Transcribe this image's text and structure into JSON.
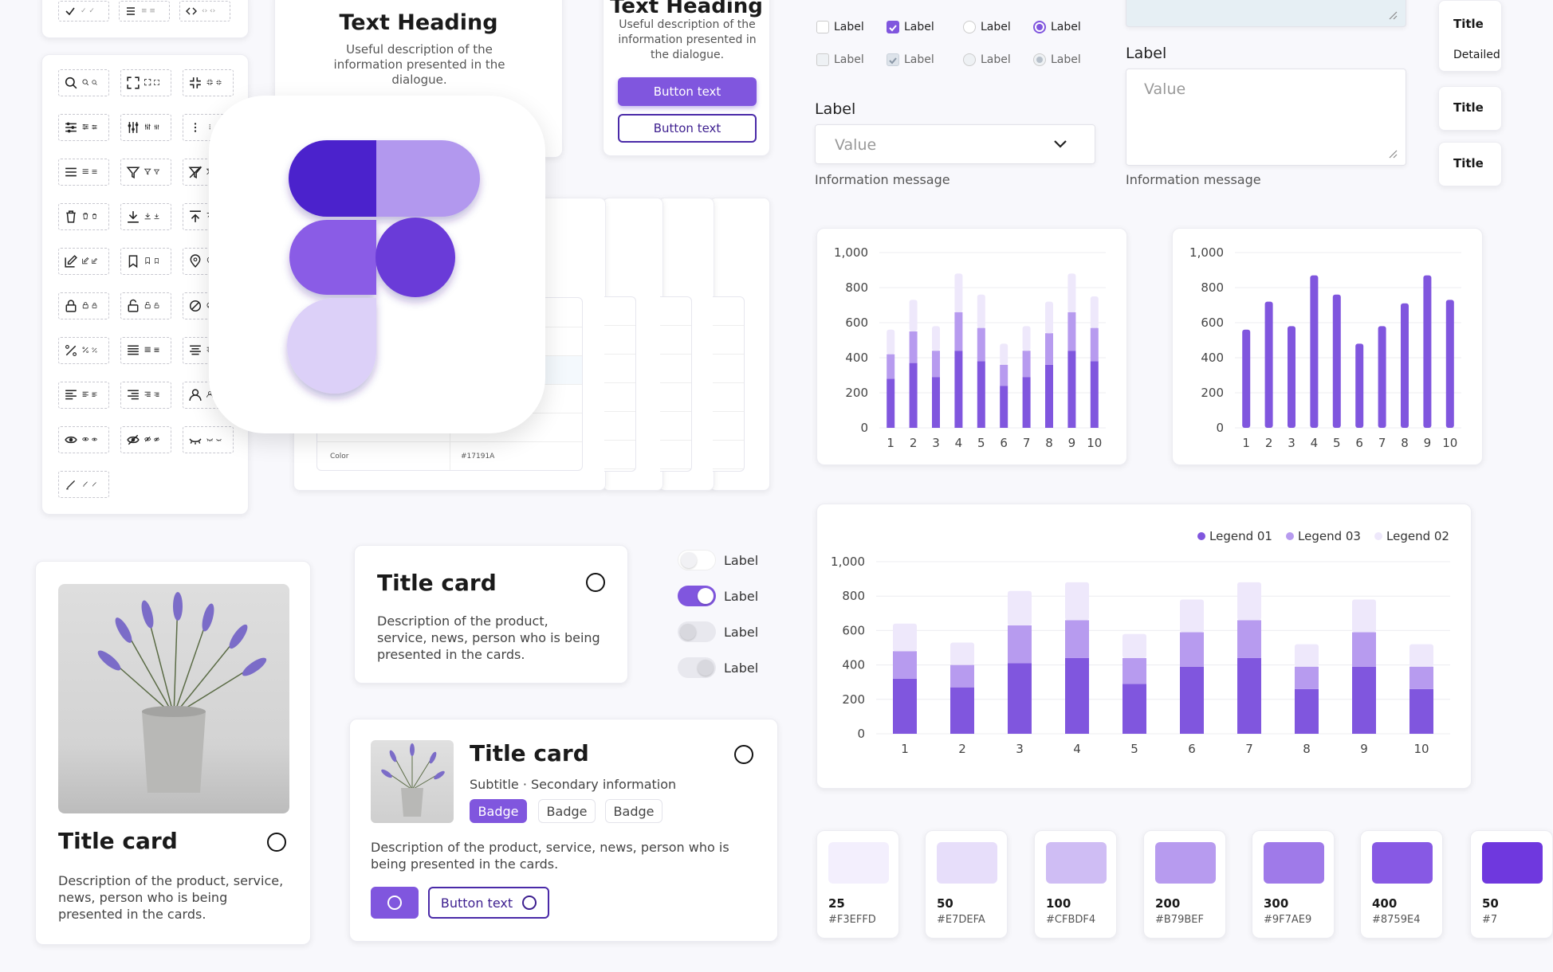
{
  "icon_buttons": [
    {
      "name": "check-icon"
    },
    {
      "name": "list-icon"
    },
    {
      "name": "code-icon"
    },
    {
      "name": "search-icon"
    },
    {
      "name": "fullscreen-icon"
    },
    {
      "name": "collapse-icon"
    },
    {
      "name": "sliders-horizontal-icon"
    },
    {
      "name": "sliders-vertical-icon"
    },
    {
      "name": "more-vertical-icon"
    },
    {
      "name": "menu-icon"
    },
    {
      "name": "filter-icon"
    },
    {
      "name": "filter-off-icon"
    },
    {
      "name": "trash-icon"
    },
    {
      "name": "download-icon"
    },
    {
      "name": "upload-icon"
    },
    {
      "name": "edit-icon"
    },
    {
      "name": "bookmark-icon"
    },
    {
      "name": "location-pin-icon"
    },
    {
      "name": "lock-icon"
    },
    {
      "name": "unlock-icon"
    },
    {
      "name": "block-icon"
    },
    {
      "name": "percent-icon"
    },
    {
      "name": "align-justify-icon"
    },
    {
      "name": "align-center-icon"
    },
    {
      "name": "align-left-icon"
    },
    {
      "name": "align-right-icon"
    },
    {
      "name": "user-icon"
    },
    {
      "name": "eye-icon"
    },
    {
      "name": "eye-off-icon"
    },
    {
      "name": "eye-closed-icon"
    },
    {
      "name": "pen-slash-icon"
    }
  ],
  "dialog1": {
    "heading": "Text Heading",
    "description": "Useful description of the information presented in the dialogue."
  },
  "dialog2": {
    "heading": "Text Heading",
    "description": "Useful description of the information presented in the dialogue.",
    "primary_button": "Button text",
    "secondary_button": "Button text"
  },
  "table_peek": {
    "row_label": "Color",
    "row_value": "#17191A"
  },
  "checkboxes": {
    "labels": [
      "Label",
      "Label",
      "Label",
      "Label",
      "Label",
      "Label",
      "Label",
      "Label"
    ]
  },
  "select_field": {
    "label": "Label",
    "value": "Value",
    "message": "Information message"
  },
  "textarea_field": {
    "label": "Label",
    "value": "Value",
    "message": "Information message"
  },
  "right_titles": {
    "items": [
      "Title",
      "Detailed",
      "Title",
      "Title"
    ]
  },
  "toggles": {
    "labels": [
      "Label",
      "Label",
      "Label",
      "Label"
    ]
  },
  "card_image": {
    "title": "Title card",
    "description": "Description of the product, service, news, person who is being presented in the cards."
  },
  "card_simple": {
    "title": "Title card",
    "description": "Description of the product, service, news, person who is being presented in the cards."
  },
  "card_rich": {
    "title": "Title card",
    "subtitle": "Subtitle · Secondary information",
    "badges": [
      "Badge",
      "Badge",
      "Badge"
    ],
    "description": "Description of the product, service, news, person who is being presented in the cards.",
    "button": "Button text"
  },
  "swatches": [
    {
      "num": "25",
      "hex": "#F3EFFD",
      "color": "#F3EFFD"
    },
    {
      "num": "50",
      "hex": "#E7DEFA",
      "color": "#E7DEFA"
    },
    {
      "num": "100",
      "hex": "#CFBDF4",
      "color": "#CFBDF4"
    },
    {
      "num": "200",
      "hex": "#B79BEF",
      "color": "#B79BEF"
    },
    {
      "num": "300",
      "hex": "#9F7AE9",
      "color": "#9F7AE9"
    },
    {
      "num": "400",
      "hex": "#8759E4",
      "color": "#8759E4"
    },
    {
      "num": "50",
      "hex": "#7",
      "color": "#6F38DE"
    }
  ],
  "colors": {
    "primary": "#8056DE",
    "dark": "#4A2AA8",
    "light": "#B79BEF",
    "lighter": "#EEE8FB"
  },
  "chart_data": [
    {
      "type": "bar",
      "stacked": true,
      "categories": [
        "1",
        "2",
        "3",
        "4",
        "5",
        "6",
        "7",
        "8",
        "9",
        "10"
      ],
      "series": [
        {
          "values": [
            280,
            370,
            290,
            440,
            380,
            240,
            290,
            360,
            440,
            380
          ]
        },
        {
          "values": [
            140,
            180,
            150,
            220,
            190,
            120,
            150,
            180,
            220,
            190
          ]
        },
        {
          "values": [
            140,
            180,
            140,
            220,
            190,
            120,
            140,
            180,
            220,
            180
          ]
        }
      ],
      "ylim": [
        0,
        1000
      ],
      "yticks": [
        "0",
        "200",
        "400",
        "600",
        "800",
        "1,000"
      ],
      "grid": true
    },
    {
      "type": "bar",
      "categories": [
        "1",
        "2",
        "3",
        "4",
        "5",
        "6",
        "7",
        "8",
        "9",
        "10"
      ],
      "values": [
        560,
        720,
        580,
        870,
        760,
        480,
        580,
        710,
        870,
        730
      ],
      "ylim": [
        0,
        1000
      ],
      "yticks": [
        "0",
        "200",
        "400",
        "600",
        "800",
        "1,000"
      ],
      "grid": true
    },
    {
      "type": "bar",
      "stacked": true,
      "categories": [
        "1",
        "2",
        "3",
        "4",
        "5",
        "6",
        "7",
        "8",
        "9",
        "10"
      ],
      "series": [
        {
          "name": "Legend 01",
          "values": [
            320,
            270,
            410,
            440,
            290,
            390,
            440,
            260,
            390,
            260
          ]
        },
        {
          "name": "Legend 03",
          "values": [
            160,
            130,
            220,
            220,
            150,
            200,
            220,
            130,
            200,
            130
          ]
        },
        {
          "name": "Legend 02",
          "values": [
            160,
            130,
            200,
            220,
            140,
            190,
            220,
            130,
            190,
            130
          ]
        }
      ],
      "ylim": [
        0,
        1000
      ],
      "yticks": [
        "0",
        "200",
        "400",
        "600",
        "800",
        "1,000"
      ],
      "legend": [
        "Legend 01",
        "Legend 03",
        "Legend 02"
      ],
      "legend_position": "top-right",
      "grid": true
    }
  ]
}
